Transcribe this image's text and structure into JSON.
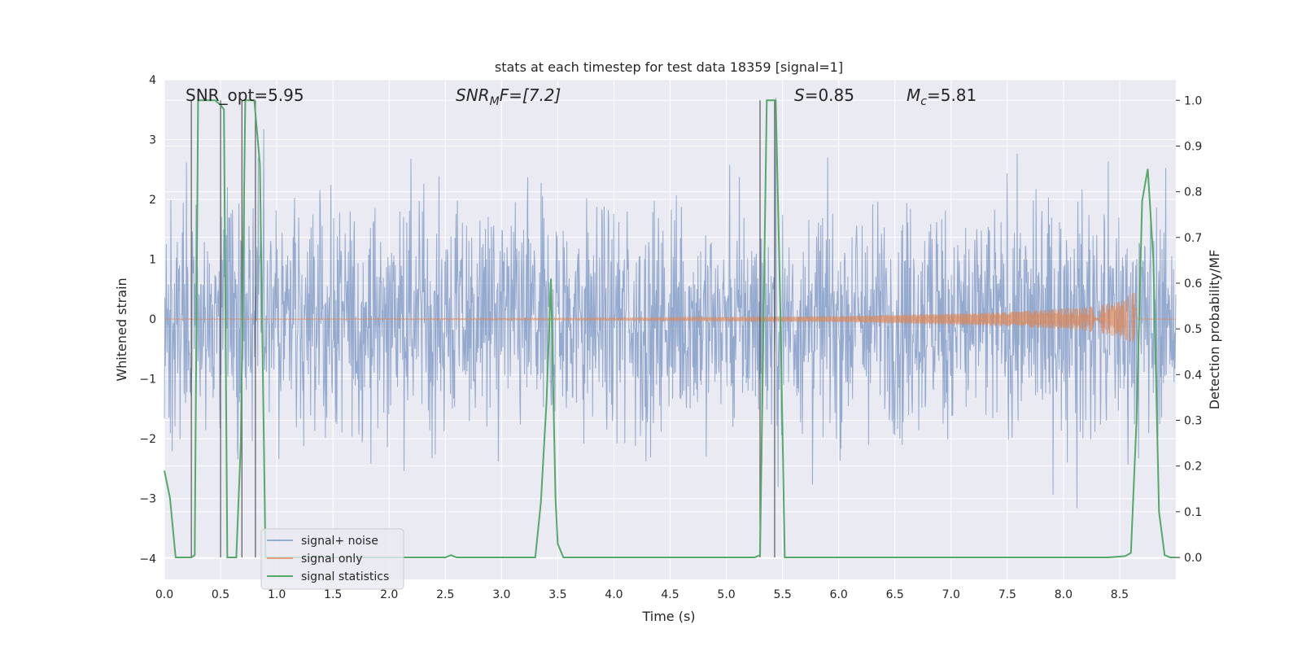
{
  "chart_data": {
    "type": "line",
    "title": "stats at each timestep for test data 18359 [signal=1]",
    "xlabel": "Time (s)",
    "ylabel": "Whitened strain",
    "ylabel_right": "Detection probability/MF",
    "xlim": [
      0.0,
      9.0
    ],
    "ylim": [
      -4.35,
      4.0
    ],
    "ylim_right": [
      -0.048,
      1.045
    ],
    "x_ticks": [
      "0.0",
      "0.5",
      "1.0",
      "1.5",
      "2.0",
      "2.5",
      "3.0",
      "3.5",
      "4.0",
      "4.5",
      "5.0",
      "5.5",
      "6.0",
      "6.5",
      "7.0",
      "7.5",
      "8.0",
      "8.5"
    ],
    "x_tick_values": [
      0,
      0.5,
      1,
      1.5,
      2,
      2.5,
      3,
      3.5,
      4,
      4.5,
      5,
      5.5,
      6,
      6.5,
      7,
      7.5,
      8,
      8.5
    ],
    "y_ticks": [
      "4",
      "3",
      "2",
      "1",
      "0",
      "−1",
      "−2",
      "−3",
      "−4"
    ],
    "y_tick_values": [
      4,
      3,
      2,
      1,
      0,
      -1,
      -2,
      -3,
      -4
    ],
    "y_ticks_right": [
      "1.0",
      "0.9",
      "0.8",
      "0.7",
      "0.6",
      "0.5",
      "0.4",
      "0.3",
      "0.2",
      "0.1",
      "0.0"
    ],
    "y_tick_values_right": [
      1.0,
      0.9,
      0.8,
      0.7,
      0.6,
      0.5,
      0.4,
      0.3,
      0.2,
      0.1,
      0.0
    ],
    "annotations": {
      "snr_opt": "SNR_opt=5.95",
      "snr_mf_main": "SNR",
      "snr_mf_sub": "M",
      "snr_mf_rest": "F=[7.2]",
      "s_main": "S",
      "s_rest": "=0.85",
      "mc_main": "M",
      "mc_sub": "c",
      "mc_rest": "=5.81"
    },
    "legend": {
      "placement": "lower-left",
      "entries": [
        "signal+ noise",
        "signal only",
        "signal statistics"
      ]
    },
    "series": [
      {
        "name": "signal+ noise",
        "axis": "left",
        "color": "#4c72b0",
        "description": "whitened noisy strain, unit-variance noise across 0–9 s, peaks near ±3.5"
      },
      {
        "name": "signal only",
        "axis": "left",
        "color": "#dd8452",
        "envelope": {
          "x": [
            0.0,
            2.0,
            4.0,
            6.0,
            7.5,
            8.2,
            8.5,
            8.6,
            8.65
          ],
          "amp": [
            0.003,
            0.008,
            0.02,
            0.05,
            0.12,
            0.2,
            0.3,
            0.42,
            0.45
          ]
        },
        "merger_time": 8.65
      },
      {
        "name": "signal statistics",
        "axis": "right",
        "color": "#55a868",
        "x": [
          0.0,
          0.05,
          0.1,
          0.2,
          0.24,
          0.27,
          0.3,
          0.45,
          0.5,
          0.53,
          0.56,
          0.6,
          0.64,
          0.68,
          0.72,
          0.75,
          0.8,
          0.85,
          0.9,
          0.95,
          1.0,
          2.5,
          2.55,
          2.6,
          3.3,
          3.35,
          3.4,
          3.44,
          3.48,
          3.5,
          3.55,
          3.6,
          5.25,
          5.3,
          5.36,
          5.4,
          5.44,
          5.48,
          5.52,
          5.55,
          5.6,
          5.7,
          8.4,
          8.55,
          8.6,
          8.65,
          8.7,
          8.75,
          8.8,
          8.85,
          8.9,
          8.95,
          9.0
        ],
        "y": [
          0.19,
          0.13,
          0.0,
          0.0,
          0.0,
          0.005,
          1.0,
          1.0,
          0.99,
          0.98,
          0.0,
          0.0,
          0.0,
          0.25,
          1.0,
          1.0,
          1.0,
          0.86,
          0.0,
          0.0,
          0.0,
          0.0,
          0.005,
          0.0,
          0.0,
          0.12,
          0.34,
          0.61,
          0.13,
          0.03,
          0.0,
          0.0,
          0.0,
          0.005,
          1.0,
          1.0,
          1.0,
          0.55,
          0.0,
          0.0,
          0.0,
          0.0,
          0.0,
          0.003,
          0.01,
          0.3,
          0.78,
          0.85,
          0.65,
          0.1,
          0.005,
          0.0,
          0.0
        ]
      }
    ],
    "vertical_lines": [
      0.24,
      0.5,
      0.69,
      0.81,
      5.3,
      5.43
    ]
  }
}
